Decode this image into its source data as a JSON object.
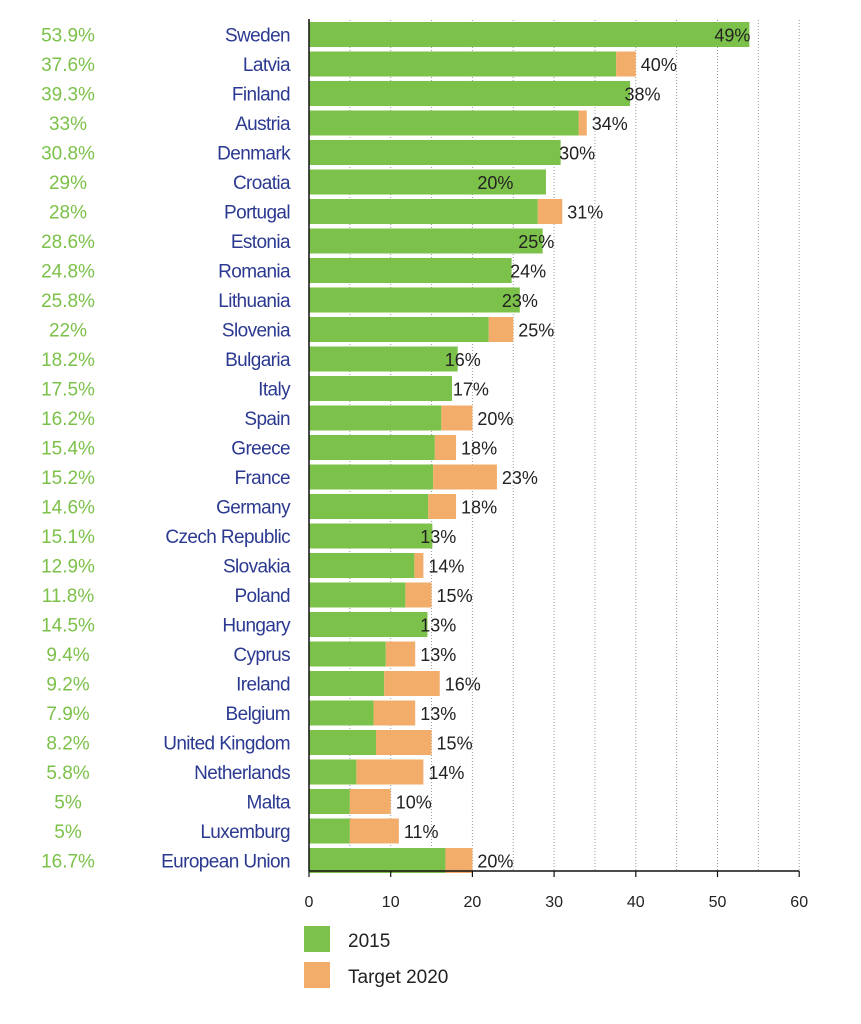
{
  "chart_data": {
    "type": "bar",
    "orientation": "horizontal",
    "xlim": [
      0,
      60
    ],
    "xticks": [
      "0",
      "10",
      "20",
      "30",
      "40",
      "50",
      "60"
    ],
    "grid": "vertical dotted lines",
    "legend_position": "bottom-left",
    "categories": [
      "Sweden",
      "Latvia",
      "Finland",
      "Austria",
      "Denmark",
      "Croatia",
      "Portugal",
      "Estonia",
      "Romania",
      "Lithuania",
      "Slovenia",
      "Bulgaria",
      "Italy",
      "Spain",
      "Greece",
      "France",
      "Germany",
      "Czech Republic",
      "Slovakia",
      "Poland",
      "Hungary",
      "Cyprus",
      "Ireland",
      "Belgium",
      "United Kingdom",
      "Netherlands",
      "Malta",
      "Luxemburg",
      "European Union"
    ],
    "share_labels": [
      "53.9%",
      "37.6%",
      "39.3%",
      "33%",
      "30.8%",
      "29%",
      "28%",
      "28.6%",
      "24.8%",
      "25.8%",
      "22%",
      "18.2%",
      "17.5%",
      "16.2%",
      "15.4%",
      "15.2%",
      "14.6%",
      "15.1%",
      "12.9%",
      "11.8%",
      "14.5%",
      "9.4%",
      "9.2%",
      "7.9%",
      "8.2%",
      "5.8%",
      "5%",
      "5%",
      "16.7%"
    ],
    "target_labels": [
      "49%",
      "40%",
      "38%",
      "34%",
      "30%",
      "20%",
      "31%",
      "25%",
      "24%",
      "23%",
      "25%",
      "16%",
      "17%",
      "20%",
      "18%",
      "23%",
      "18%",
      "13%",
      "14%",
      "15%",
      "13%",
      "13%",
      "16%",
      "13%",
      "15%",
      "14%",
      "10%",
      "11%",
      "20%"
    ],
    "series": [
      {
        "name": "2015",
        "color": "#7cc14a",
        "values": [
          53.9,
          37.6,
          39.3,
          33,
          30.8,
          29,
          28,
          28.6,
          24.8,
          25.8,
          22,
          18.2,
          17.5,
          16.2,
          15.4,
          15.2,
          14.6,
          15.1,
          12.9,
          11.8,
          14.5,
          9.4,
          9.2,
          7.9,
          8.2,
          5.8,
          5,
          5,
          16.7
        ]
      },
      {
        "name": "Target 2020",
        "color": "#f3ad6b",
        "values": [
          49,
          40,
          38,
          34,
          30,
          20,
          31,
          25,
          24,
          23,
          25,
          16,
          17,
          20,
          18,
          23,
          18,
          13,
          14,
          15,
          13,
          13,
          16,
          13,
          15,
          14,
          10,
          11,
          20
        ]
      }
    ]
  }
}
